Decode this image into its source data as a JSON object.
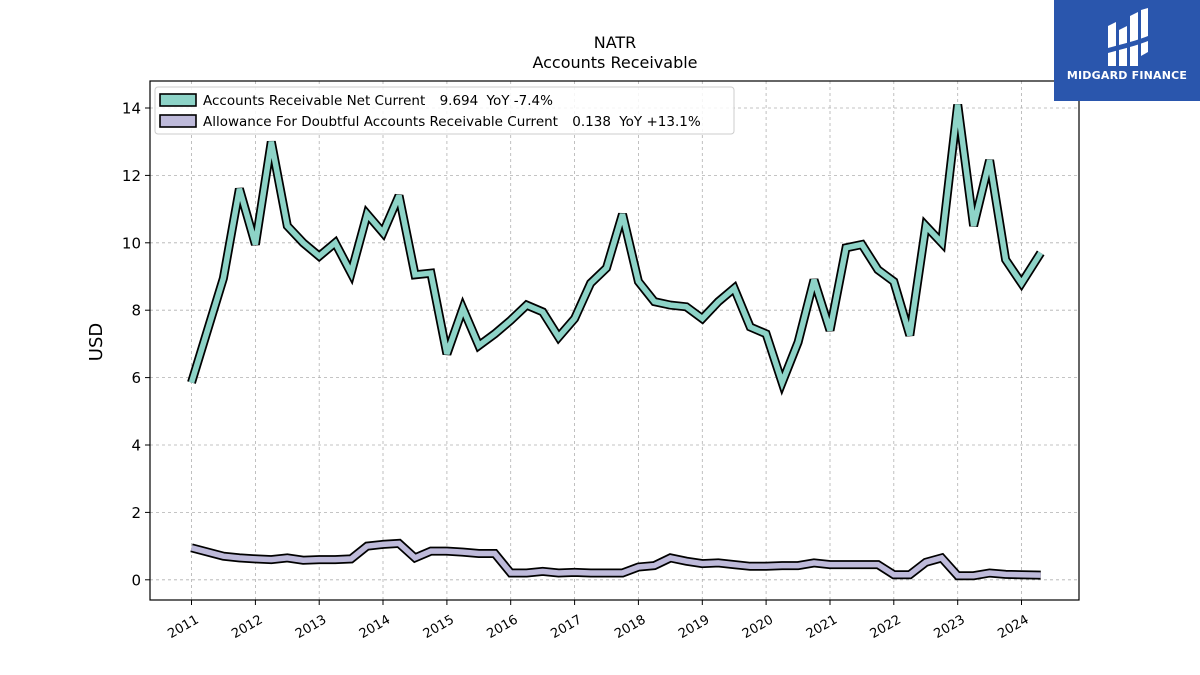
{
  "title": "NATR",
  "subtitle": "Accounts Receivable",
  "logo": {
    "text": "MIDGARD FINANCE",
    "color": "#2a56ad"
  },
  "chart_data": {
    "type": "line",
    "title": "NATR",
    "subtitle": "Accounts Receivable",
    "xlabel": "",
    "ylabel": "USD",
    "ylim": [
      -0.6,
      14.8
    ],
    "xlim": [
      2010.35,
      2024.9
    ],
    "yticks": [
      0,
      2,
      4,
      6,
      8,
      10,
      12,
      14
    ],
    "xticks": [
      2011,
      2012,
      2013,
      2014,
      2015,
      2016,
      2017,
      2018,
      2019,
      2020,
      2021,
      2022,
      2023,
      2024
    ],
    "xtick_labels": [
      "2011",
      "2012",
      "2013",
      "2014",
      "2015",
      "2016",
      "2017",
      "2018",
      "2019",
      "2020",
      "2021",
      "2022",
      "2023",
      "2024"
    ],
    "grid": true,
    "legend_position": "top-left",
    "x": [
      2011.0,
      2011.5,
      2011.75,
      2012.0,
      2012.25,
      2012.5,
      2012.75,
      2013.0,
      2013.25,
      2013.5,
      2013.75,
      2014.0,
      2014.25,
      2014.5,
      2014.75,
      2015.0,
      2015.25,
      2015.5,
      2015.75,
      2016.0,
      2016.25,
      2016.5,
      2016.75,
      2017.0,
      2017.25,
      2017.5,
      2017.75,
      2018.0,
      2018.25,
      2018.5,
      2018.75,
      2019.0,
      2019.25,
      2019.5,
      2019.75,
      2020.0,
      2020.25,
      2020.5,
      2020.75,
      2021.0,
      2021.25,
      2021.5,
      2021.75,
      2022.0,
      2022.25,
      2022.5,
      2022.75,
      2023.0,
      2023.25,
      2023.5,
      2023.75,
      2024.0,
      2024.3
    ],
    "series": [
      {
        "name": "Accounts Receivable Net Current",
        "legend_value": "9.694",
        "legend_yoy": "YoY -7.4%",
        "color": "#8dd3c7",
        "values": [
          5.85,
          8.95,
          11.6,
          9.95,
          13.0,
          10.5,
          10.0,
          9.6,
          10.0,
          9.1,
          10.85,
          10.3,
          11.4,
          9.05,
          9.1,
          6.7,
          8.05,
          6.95,
          7.3,
          7.7,
          8.15,
          7.95,
          7.2,
          7.75,
          8.8,
          9.25,
          10.85,
          8.85,
          8.25,
          8.15,
          8.1,
          7.75,
          8.25,
          8.65,
          7.5,
          7.3,
          5.85,
          7.05,
          8.9,
          7.4,
          9.85,
          9.95,
          9.2,
          8.85,
          7.25,
          10.5,
          10.0,
          14.1,
          10.5,
          12.45,
          9.5,
          8.8,
          9.7
        ]
      },
      {
        "name": "Allowance For Doubtful Accounts Receivable Current",
        "legend_value": "0.138",
        "legend_yoy": "YoY +13.1%",
        "color": "#bebada",
        "values": [
          0.95,
          0.7,
          0.65,
          0.62,
          0.6,
          0.65,
          0.58,
          0.6,
          0.6,
          0.62,
          1.0,
          1.05,
          1.08,
          0.65,
          0.85,
          0.85,
          0.82,
          0.78,
          0.78,
          0.2,
          0.2,
          0.25,
          0.2,
          0.22,
          0.2,
          0.2,
          0.2,
          0.38,
          0.42,
          0.65,
          0.55,
          0.48,
          0.5,
          0.45,
          0.4,
          0.4,
          0.42,
          0.42,
          0.5,
          0.45,
          0.45,
          0.45,
          0.45,
          0.15,
          0.15,
          0.52,
          0.65,
          0.12,
          0.12,
          0.2,
          0.16,
          0.15,
          0.14
        ]
      }
    ]
  }
}
